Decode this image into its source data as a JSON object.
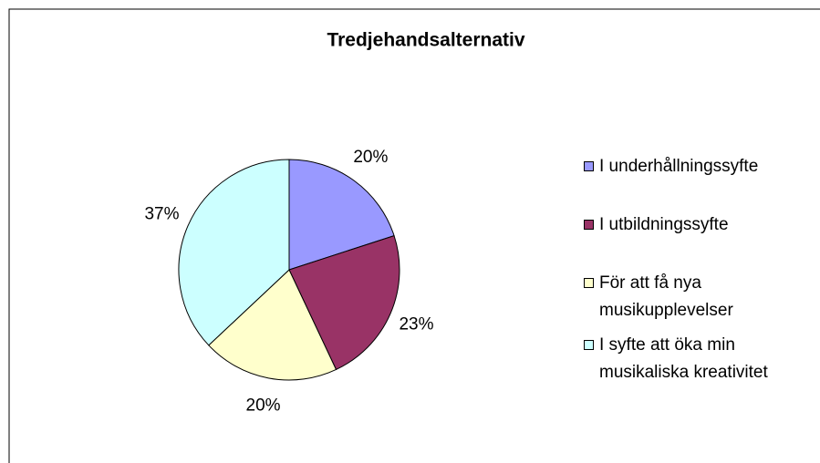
{
  "chart_data": {
    "type": "pie",
    "title": "Tredjehandsalternativ",
    "categories": [
      "I underhållningssyfte",
      "I utbildningssyfte",
      "För att få nya musikupplevelser",
      "I syfte att öka min musikaliska kreativitet"
    ],
    "values": [
      20,
      23,
      20,
      37
    ],
    "value_labels": [
      "20%",
      "23%",
      "20%",
      "37%"
    ],
    "colors": [
      "#9999ff",
      "#993366",
      "#ffffcc",
      "#ccffff"
    ],
    "legend": "right"
  }
}
